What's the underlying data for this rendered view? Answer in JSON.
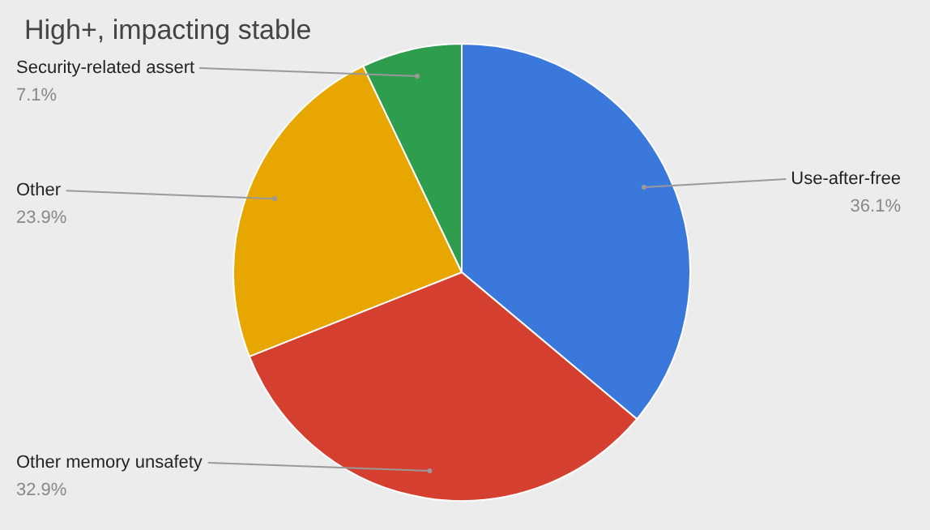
{
  "chart_data": {
    "type": "pie",
    "title": "High+, impacting stable",
    "categories": [
      "Use-after-free",
      "Other memory unsafety",
      "Other",
      "Security-related assert"
    ],
    "values": [
      36.1,
      32.9,
      23.9,
      7.1
    ],
    "colors": [
      "#3b78db",
      "#d53f2f",
      "#e8a600",
      "#2e9d4e"
    ],
    "value_labels": [
      "36.1%",
      "32.9%",
      "23.9%",
      "7.1%"
    ]
  }
}
